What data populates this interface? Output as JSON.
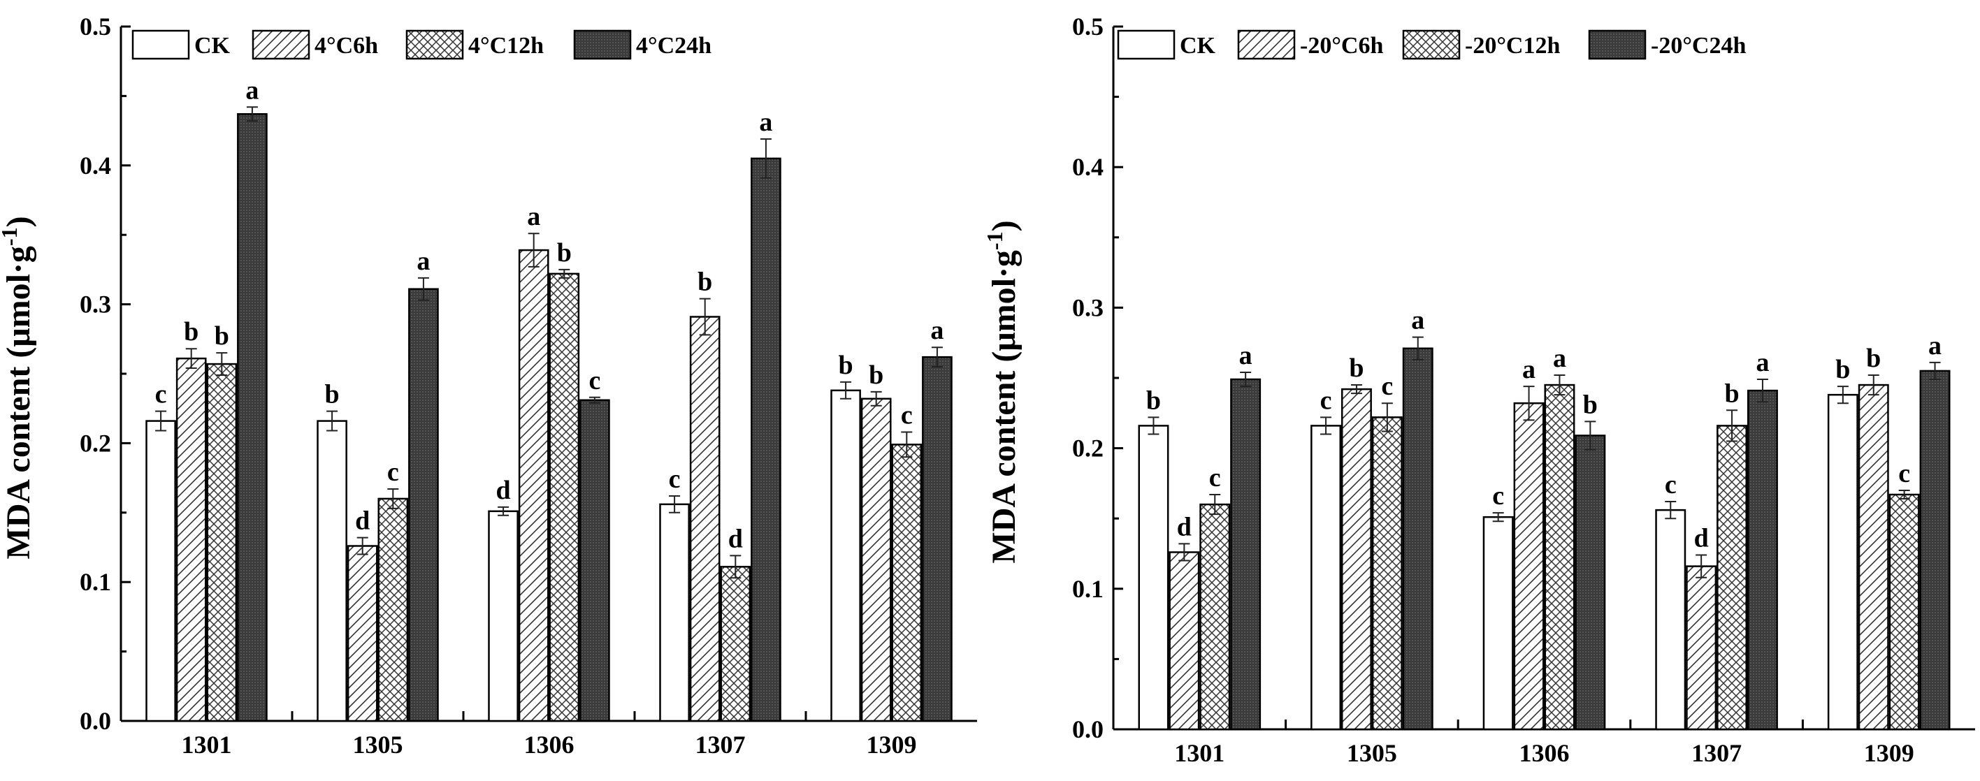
{
  "chart_data": [
    {
      "type": "bar",
      "title": "",
      "xlabel": "",
      "ylabel": "MDA content (μmol·g",
      "ylabel_superscript": "-1",
      "ylabel_close": ")",
      "ylim": [
        0,
        0.5
      ],
      "yticks": [
        "0.0",
        "0.1",
        "0.2",
        "0.3",
        "0.4",
        "0.5"
      ],
      "categories": [
        "1301",
        "1305",
        "1306",
        "1307",
        "1309"
      ],
      "legend_position": "top-left",
      "series": [
        {
          "name": "CK",
          "fill": "white",
          "values": [
            0.216,
            0.216,
            0.151,
            0.156,
            0.238
          ],
          "errors": [
            0.007,
            0.007,
            0.003,
            0.006,
            0.006
          ],
          "letters": [
            "c",
            "b",
            "d",
            "c",
            "b"
          ]
        },
        {
          "name": "4°C6h",
          "fill": "diagonal",
          "values": [
            0.261,
            0.126,
            0.339,
            0.291,
            0.232
          ],
          "errors": [
            0.007,
            0.006,
            0.012,
            0.013,
            0.005
          ],
          "letters": [
            "b",
            "d",
            "a",
            "b",
            "b"
          ]
        },
        {
          "name": "4°C12h",
          "fill": "crosshatch",
          "values": [
            0.257,
            0.16,
            0.322,
            0.111,
            0.199
          ],
          "errors": [
            0.008,
            0.007,
            0.003,
            0.008,
            0.009
          ],
          "letters": [
            "b",
            "c",
            "b",
            "d",
            "c"
          ]
        },
        {
          "name": "4°C24h",
          "fill": "dark",
          "values": [
            0.437,
            0.311,
            0.231,
            0.405,
            0.262
          ],
          "errors": [
            0.005,
            0.008,
            0.002,
            0.014,
            0.007
          ],
          "letters": [
            "a",
            "a",
            "c",
            "a",
            "a"
          ]
        }
      ]
    },
    {
      "type": "bar",
      "title": "",
      "xlabel": "",
      "ylabel": "MDA content (μmol·g",
      "ylabel_superscript": "-1",
      "ylabel_close": ")",
      "ylim": [
        0,
        0.5
      ],
      "yticks": [
        "0.0",
        "0.1",
        "0.2",
        "0.3",
        "0.4",
        "0.5"
      ],
      "categories": [
        "1301",
        "1305",
        "1306",
        "1307",
        "1309"
      ],
      "legend_position": "top-left",
      "series": [
        {
          "name": "CK",
          "fill": "white",
          "values": [
            0.216,
            0.216,
            0.151,
            0.156,
            0.238
          ],
          "errors": [
            0.006,
            0.006,
            0.003,
            0.006,
            0.006
          ],
          "letters": [
            "b",
            "c",
            "c",
            "c",
            "b"
          ]
        },
        {
          "name": "-20°C6h",
          "fill": "diagonal",
          "values": [
            0.126,
            0.242,
            0.232,
            0.116,
            0.245
          ],
          "errors": [
            0.006,
            0.003,
            0.012,
            0.008,
            0.007
          ],
          "letters": [
            "d",
            "b",
            "a",
            "d",
            "b"
          ]
        },
        {
          "name": "-20°C12h",
          "fill": "crosshatch",
          "values": [
            0.16,
            0.222,
            0.245,
            0.216,
            0.167
          ],
          "errors": [
            0.007,
            0.01,
            0.007,
            0.011,
            0.003
          ],
          "letters": [
            "c",
            "c",
            "a",
            "b",
            "c"
          ]
        },
        {
          "name": "-20°C24h",
          "fill": "dark",
          "values": [
            0.249,
            0.271,
            0.209,
            0.241,
            0.255
          ],
          "errors": [
            0.005,
            0.008,
            0.01,
            0.008,
            0.006
          ],
          "letters": [
            "a",
            "a",
            "b",
            "a",
            "a"
          ]
        }
      ]
    }
  ]
}
